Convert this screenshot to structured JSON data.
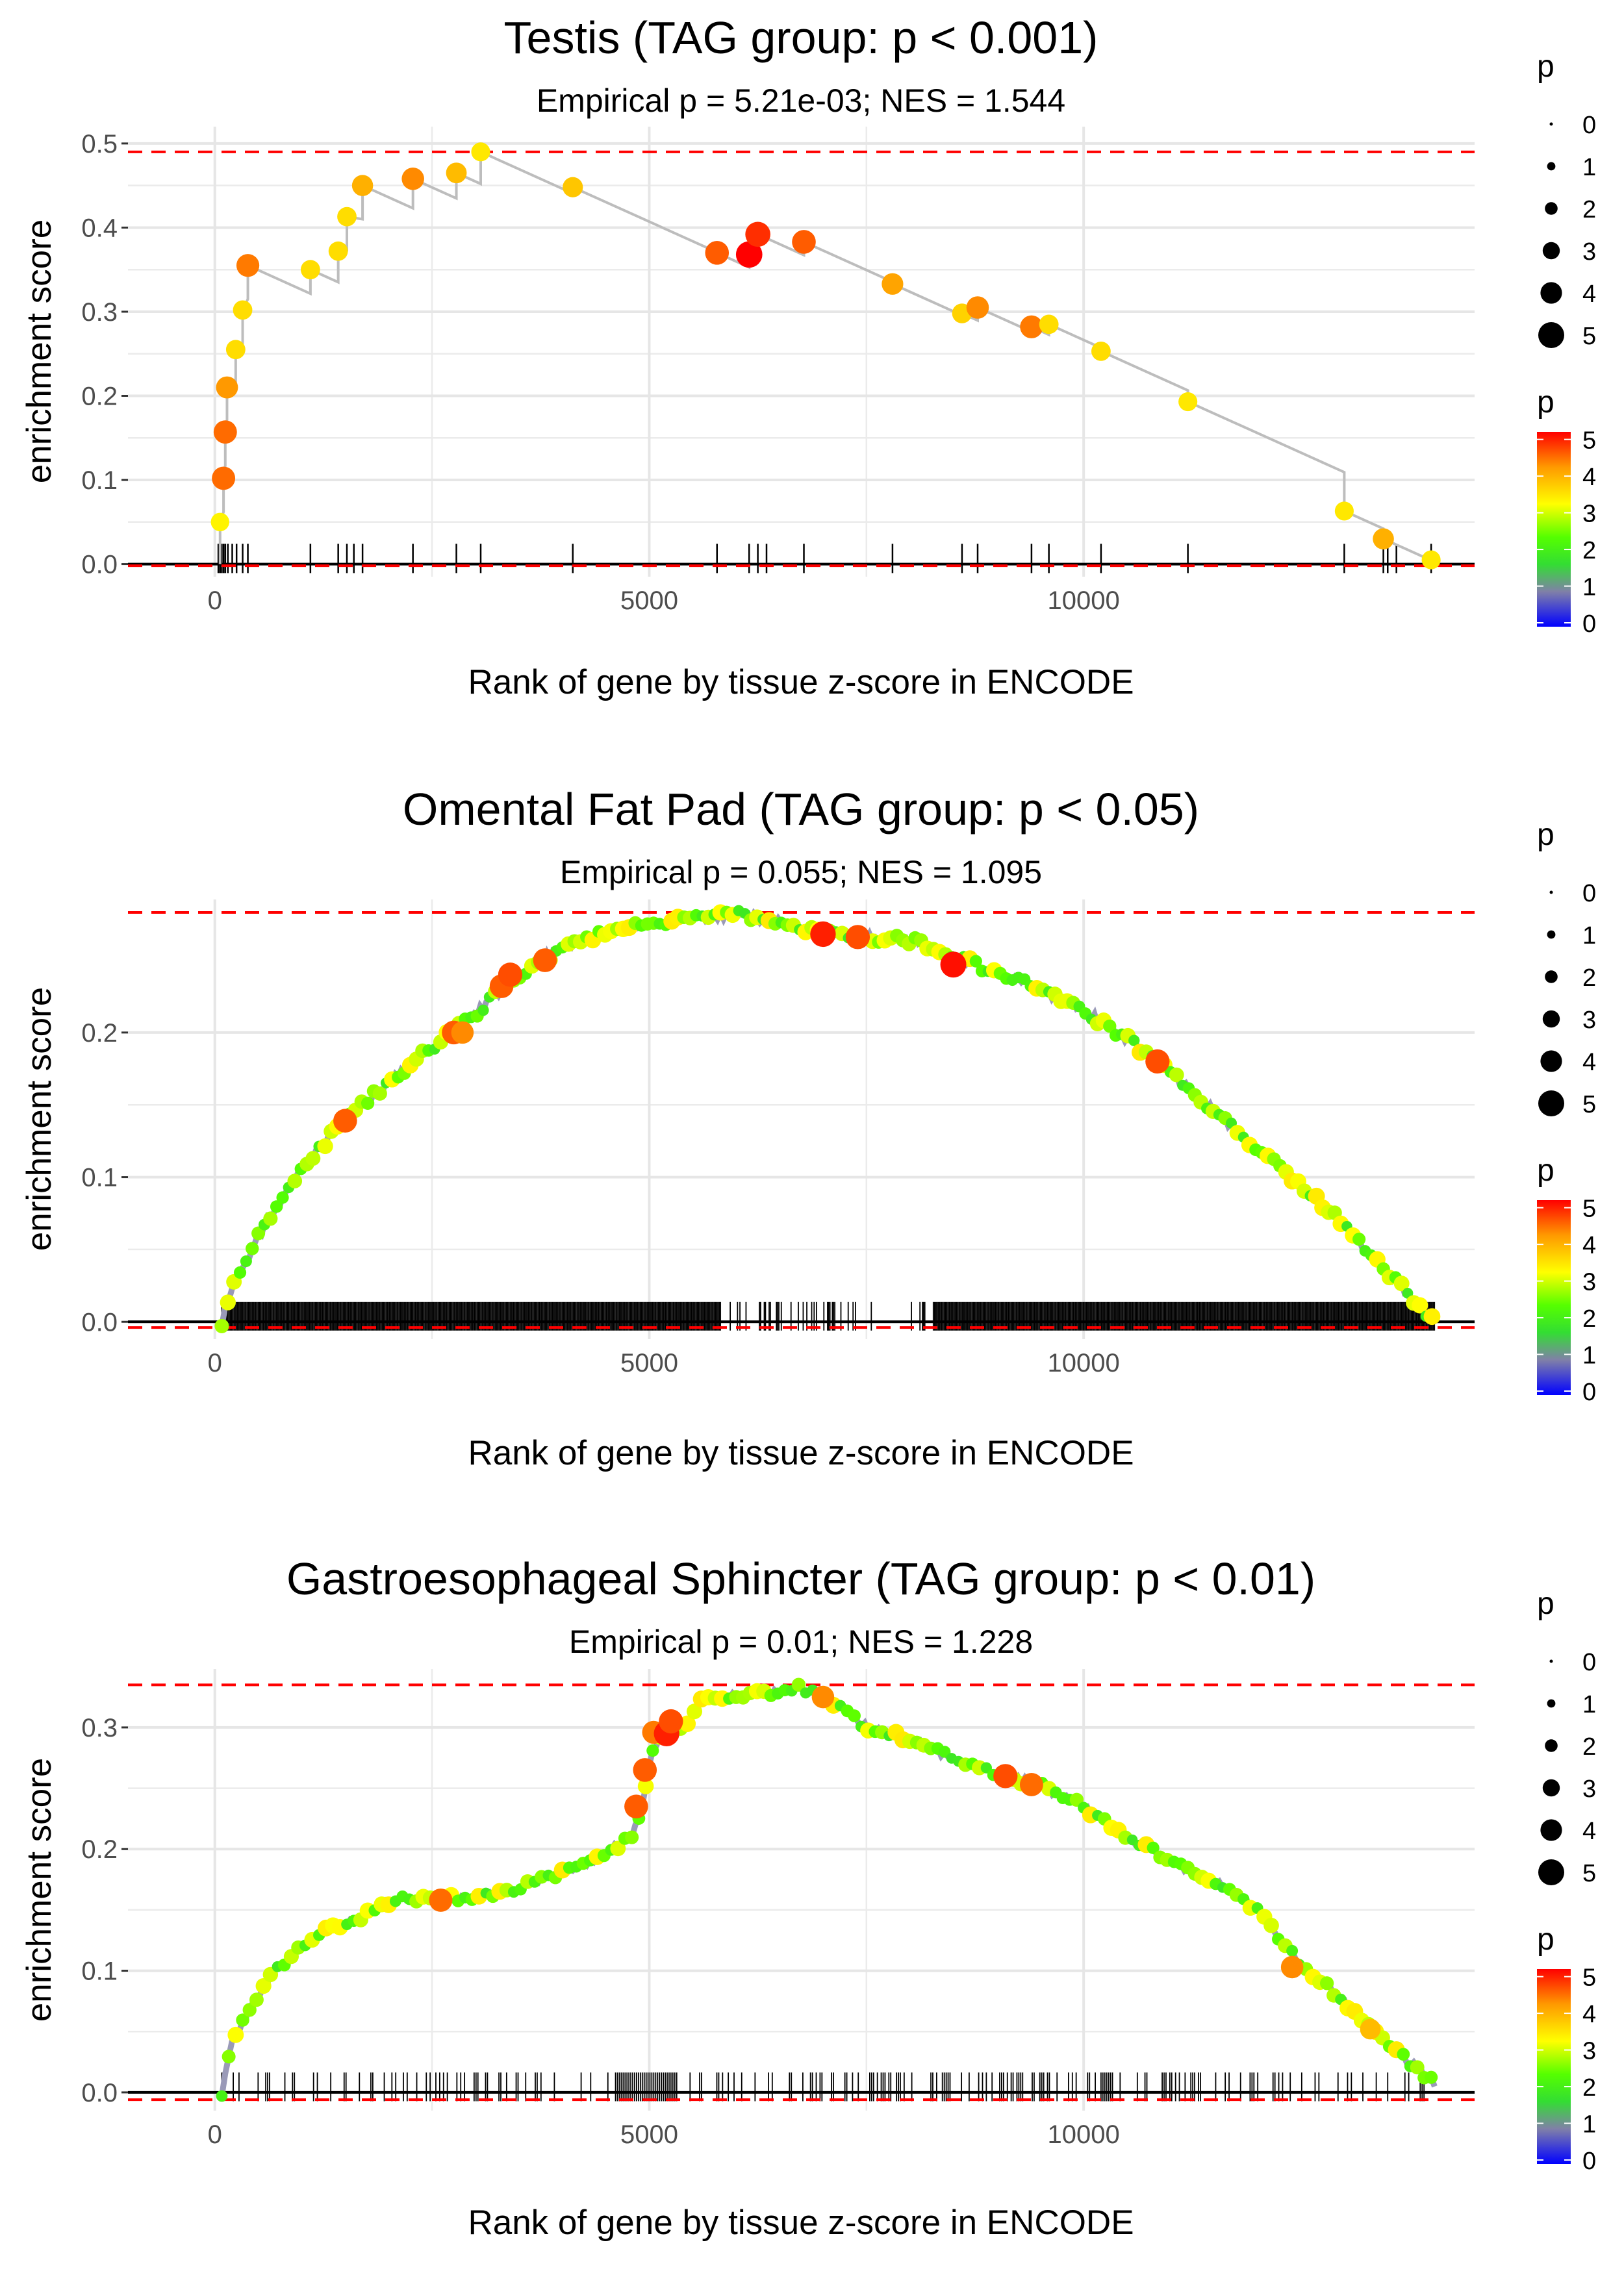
{
  "chart_data": [
    {
      "type": "scatter",
      "title": "Testis (TAG group: p < 0.001)",
      "subtitle": "Empirical p = 5.21e-03; NES = 1.544",
      "xlabel": "Rank of gene by tissue z-score in ENCODE",
      "ylabel": "enrichment score",
      "xlim": [
        -1000,
        14500
      ],
      "ylim": [
        -0.015,
        0.52
      ],
      "xticks": [
        0,
        5000,
        10000
      ],
      "xtick_labels": [
        "0",
        "5000",
        "10000"
      ],
      "yticks": [
        0,
        0.1,
        0.2,
        0.3,
        0.4,
        0.5
      ],
      "ytick_labels": [
        "0.0",
        "0.1",
        "0.2",
        "0.3",
        "0.4",
        "0.5"
      ],
      "ref_lines": [
        0.49,
        -0.002
      ],
      "gene_hits": [
        40,
        60,
        80,
        100,
        120,
        150,
        200,
        250,
        320,
        380,
        1100,
        1420,
        1520,
        1600,
        1700,
        2280,
        2780,
        3060,
        4120,
        5780,
        6150,
        6250,
        6350,
        6780,
        7800,
        8600,
        8780,
        9400,
        9600,
        10200,
        11200,
        13000,
        13450,
        13500,
        13600,
        14000
      ],
      "points": [
        {
          "x": 60,
          "y": 0.05,
          "p": 3.3
        },
        {
          "x": 100,
          "y": 0.102,
          "p": 4.4
        },
        {
          "x": 120,
          "y": 0.157,
          "p": 4.4
        },
        {
          "x": 140,
          "y": 0.21,
          "p": 4.1
        },
        {
          "x": 240,
          "y": 0.255,
          "p": 3.5
        },
        {
          "x": 320,
          "y": 0.302,
          "p": 3.5
        },
        {
          "x": 380,
          "y": 0.355,
          "p": 4.3
        },
        {
          "x": 1100,
          "y": 0.35,
          "p": 3.5
        },
        {
          "x": 1420,
          "y": 0.372,
          "p": 3.5
        },
        {
          "x": 1520,
          "y": 0.413,
          "p": 3.5
        },
        {
          "x": 1700,
          "y": 0.45,
          "p": 3.9
        },
        {
          "x": 2280,
          "y": 0.458,
          "p": 4.2
        },
        {
          "x": 2780,
          "y": 0.465,
          "p": 3.8
        },
        {
          "x": 3060,
          "y": 0.49,
          "p": 3.4
        },
        {
          "x": 4120,
          "y": 0.448,
          "p": 3.7
        },
        {
          "x": 5780,
          "y": 0.37,
          "p": 4.5
        },
        {
          "x": 6150,
          "y": 0.368,
          "p": 5.1
        },
        {
          "x": 6250,
          "y": 0.392,
          "p": 4.8
        },
        {
          "x": 6780,
          "y": 0.383,
          "p": 4.5
        },
        {
          "x": 7800,
          "y": 0.333,
          "p": 4.0
        },
        {
          "x": 8600,
          "y": 0.298,
          "p": 3.6
        },
        {
          "x": 8780,
          "y": 0.305,
          "p": 4.2
        },
        {
          "x": 9400,
          "y": 0.282,
          "p": 4.3
        },
        {
          "x": 9600,
          "y": 0.285,
          "p": 3.5
        },
        {
          "x": 10200,
          "y": 0.253,
          "p": 3.5
        },
        {
          "x": 11200,
          "y": 0.193,
          "p": 3.4
        },
        {
          "x": 13000,
          "y": 0.063,
          "p": 3.4
        },
        {
          "x": 13450,
          "y": 0.03,
          "p": 3.9
        },
        {
          "x": 14000,
          "y": 0.005,
          "p": 3.4
        }
      ],
      "legend_size_title": "p",
      "legend_size_labels": [
        "0",
        "1",
        "2",
        "3",
        "4",
        "5"
      ],
      "legend_color_title": "p",
      "legend_color_labels": [
        "0",
        "1",
        "2",
        "3",
        "4",
        "5"
      ]
    },
    {
      "type": "scatter",
      "title": "Omental Fat Pad (TAG group: p < 0.05)",
      "subtitle": "Empirical p = 0.055; NES = 1.095",
      "xlabel": "Rank of gene by tissue z-score in ENCODE",
      "ylabel": "enrichment score",
      "xlim": [
        -1000,
        14500
      ],
      "ylim": [
        -0.012,
        0.292
      ],
      "xticks": [
        0,
        5000,
        10000
      ],
      "xtick_labels": [
        "0",
        "5000",
        "10000"
      ],
      "yticks": [
        0,
        0.1,
        0.2
      ],
      "ytick_labels": [
        "0.0",
        "0.1",
        "0.2"
      ],
      "ref_lines": [
        0.283,
        -0.004
      ],
      "hit_range": [
        80,
        14050
      ],
      "hit_gaps": [
        [
          5820,
          8280
        ]
      ],
      "curve": [
        [
          80,
          0
        ],
        [
          250,
          0.03
        ],
        [
          600,
          0.07
        ],
        [
          1000,
          0.105
        ],
        [
          1500,
          0.14
        ],
        [
          2000,
          0.165
        ],
        [
          2500,
          0.19
        ],
        [
          3000,
          0.213
        ],
        [
          3500,
          0.24
        ],
        [
          4000,
          0.258
        ],
        [
          4500,
          0.27
        ],
        [
          5000,
          0.274
        ],
        [
          5500,
          0.279
        ],
        [
          6000,
          0.282
        ],
        [
          6500,
          0.276
        ],
        [
          7000,
          0.27
        ],
        [
          7500,
          0.266
        ],
        [
          8000,
          0.264
        ],
        [
          8500,
          0.252
        ],
        [
          9000,
          0.242
        ],
        [
          9500,
          0.23
        ],
        [
          10000,
          0.215
        ],
        [
          10500,
          0.196
        ],
        [
          11000,
          0.172
        ],
        [
          11500,
          0.146
        ],
        [
          12000,
          0.12
        ],
        [
          12500,
          0.095
        ],
        [
          13000,
          0.066
        ],
        [
          13500,
          0.034
        ],
        [
          14050,
          0.0
        ]
      ],
      "highlight_points": [
        {
          "x": 1500,
          "y": 0.139,
          "p": 4.5
        },
        {
          "x": 2750,
          "y": 0.2,
          "p": 4.5
        },
        {
          "x": 2850,
          "y": 0.2,
          "p": 4.2
        },
        {
          "x": 3300,
          "y": 0.232,
          "p": 4.5
        },
        {
          "x": 3400,
          "y": 0.24,
          "p": 4.6
        },
        {
          "x": 3800,
          "y": 0.25,
          "p": 4.5
        },
        {
          "x": 7000,
          "y": 0.268,
          "p": 4.9
        },
        {
          "x": 7400,
          "y": 0.266,
          "p": 4.6
        },
        {
          "x": 8500,
          "y": 0.247,
          "p": 5.0
        },
        {
          "x": 10850,
          "y": 0.18,
          "p": 4.6
        }
      ],
      "legend_size_title": "p",
      "legend_size_labels": [
        "0",
        "1",
        "2",
        "3",
        "4",
        "5"
      ],
      "legend_color_title": "p",
      "legend_color_labels": [
        "0",
        "1",
        "2",
        "3",
        "4",
        "5"
      ]
    },
    {
      "type": "scatter",
      "title": "Gastroesophageal Sphincter (TAG group: p < 0.01)",
      "subtitle": "Empirical p = 0.01; NES = 1.228",
      "xlabel": "Rank of gene by tissue z-score in ENCODE",
      "ylabel": "enrichment score",
      "xlim": [
        -1000,
        14500
      ],
      "ylim": [
        -0.015,
        0.348
      ],
      "xticks": [
        0,
        5000,
        10000
      ],
      "xtick_labels": [
        "0",
        "5000",
        "10000"
      ],
      "yticks": [
        0,
        0.1,
        0.2,
        0.3
      ],
      "ytick_labels": [
        "0.0",
        "0.1",
        "0.2",
        "0.3"
      ],
      "ref_lines": [
        0.335,
        -0.006
      ],
      "hit_range": [
        80,
        14050
      ],
      "hit_gaps": [],
      "curve": [
        [
          80,
          0.0
        ],
        [
          200,
          0.04
        ],
        [
          400,
          0.07
        ],
        [
          700,
          0.1
        ],
        [
          1000,
          0.12
        ],
        [
          1300,
          0.135
        ],
        [
          1600,
          0.14
        ],
        [
          1900,
          0.155
        ],
        [
          2200,
          0.16
        ],
        [
          2600,
          0.16
        ],
        [
          3000,
          0.16
        ],
        [
          3500,
          0.168
        ],
        [
          4000,
          0.18
        ],
        [
          4400,
          0.192
        ],
        [
          4800,
          0.21
        ],
        [
          4900,
          0.23
        ],
        [
          5000,
          0.27
        ],
        [
          5100,
          0.29
        ],
        [
          5400,
          0.3
        ],
        [
          5600,
          0.322
        ],
        [
          6000,
          0.326
        ],
        [
          6500,
          0.33
        ],
        [
          6700,
          0.334
        ],
        [
          7000,
          0.325
        ],
        [
          7500,
          0.3
        ],
        [
          8000,
          0.29
        ],
        [
          8500,
          0.275
        ],
        [
          9000,
          0.262
        ],
        [
          9500,
          0.252
        ],
        [
          10000,
          0.235
        ],
        [
          10500,
          0.21
        ],
        [
          11000,
          0.19
        ],
        [
          11500,
          0.175
        ],
        [
          12000,
          0.15
        ],
        [
          12500,
          0.105
        ],
        [
          13000,
          0.075
        ],
        [
          13500,
          0.04
        ],
        [
          14050,
          0.007
        ]
      ],
      "highlight_points": [
        {
          "x": 2600,
          "y": 0.158,
          "p": 4.4
        },
        {
          "x": 4850,
          "y": 0.235,
          "p": 4.5
        },
        {
          "x": 4950,
          "y": 0.265,
          "p": 4.5
        },
        {
          "x": 5050,
          "y": 0.296,
          "p": 4.3
        },
        {
          "x": 5200,
          "y": 0.295,
          "p": 4.9
        },
        {
          "x": 5250,
          "y": 0.305,
          "p": 4.6
        },
        {
          "x": 7000,
          "y": 0.325,
          "p": 4.2
        },
        {
          "x": 9100,
          "y": 0.26,
          "p": 4.6
        },
        {
          "x": 9400,
          "y": 0.253,
          "p": 4.4
        },
        {
          "x": 12400,
          "y": 0.103,
          "p": 4.2
        },
        {
          "x": 13300,
          "y": 0.052,
          "p": 3.8
        }
      ],
      "legend_size_title": "p",
      "legend_size_labels": [
        "0",
        "1",
        "2",
        "3",
        "4",
        "5"
      ],
      "legend_color_title": "p",
      "legend_color_labels": [
        "0",
        "1",
        "2",
        "3",
        "4",
        "5"
      ]
    }
  ]
}
